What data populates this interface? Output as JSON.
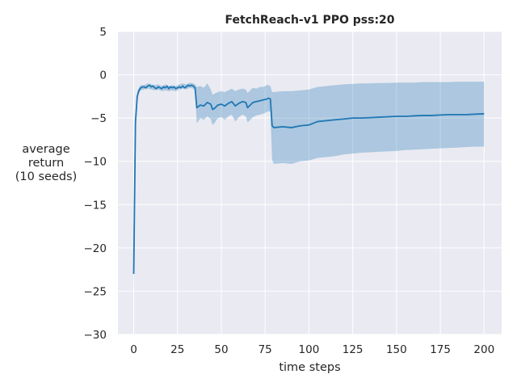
{
  "chart_data": {
    "type": "line",
    "title": "FetchReach-v1 PPO pss:20",
    "xlabel": "time steps",
    "ylabel_lines": [
      "average",
      "return",
      "(10 seeds)"
    ],
    "xlim": [
      -9,
      210
    ],
    "ylim": [
      -30,
      5
    ],
    "x_ticks": [
      0,
      25,
      50,
      75,
      100,
      125,
      150,
      175,
      200
    ],
    "y_ticks": [
      5,
      0,
      -5,
      -10,
      -15,
      -20,
      -25,
      -30
    ],
    "x_tick_labels": [
      "0",
      "25",
      "50",
      "75",
      "100",
      "125",
      "150",
      "175",
      "200"
    ],
    "y_tick_labels": [
      "5",
      "0",
      "−5",
      "−10",
      "−15",
      "−20",
      "−25",
      "−30"
    ],
    "grid": true,
    "colors": {
      "background": "#eaeaf2",
      "grid": "#ffffff",
      "line": "#1f77b4",
      "band": "#1f77b4"
    },
    "series": [
      {
        "mean": [
          [
            0,
            -23
          ],
          [
            1,
            -5.5
          ],
          [
            2,
            -2.5
          ],
          [
            3,
            -1.8
          ],
          [
            4,
            -1.5
          ],
          [
            5,
            -1.4
          ],
          [
            6,
            -1.4
          ],
          [
            7,
            -1.5
          ],
          [
            8,
            -1.3
          ],
          [
            9,
            -1.2
          ],
          [
            10,
            -1.4
          ],
          [
            11,
            -1.3
          ],
          [
            12,
            -1.5
          ],
          [
            13,
            -1.6
          ],
          [
            14,
            -1.4
          ],
          [
            15,
            -1.5
          ],
          [
            16,
            -1.6
          ],
          [
            17,
            -1.4
          ],
          [
            18,
            -1.5
          ],
          [
            19,
            -1.3
          ],
          [
            20,
            -1.6
          ],
          [
            21,
            -1.4
          ],
          [
            22,
            -1.5
          ],
          [
            23,
            -1.4
          ],
          [
            24,
            -1.6
          ],
          [
            25,
            -1.5
          ],
          [
            26,
            -1.4
          ],
          [
            27,
            -1.5
          ],
          [
            28,
            -1.3
          ],
          [
            29,
            -1.5
          ],
          [
            30,
            -1.4
          ],
          [
            31,
            -1.2
          ],
          [
            32,
            -1.3
          ],
          [
            33,
            -1.2
          ],
          [
            34,
            -1.3
          ],
          [
            35,
            -1.5
          ],
          [
            36,
            -3.8
          ],
          [
            38,
            -3.5
          ],
          [
            40,
            -3.6
          ],
          [
            42,
            -3.2
          ],
          [
            44,
            -3.4
          ],
          [
            45,
            -4.0
          ],
          [
            46,
            -3.9
          ],
          [
            48,
            -3.5
          ],
          [
            50,
            -3.4
          ],
          [
            52,
            -3.6
          ],
          [
            54,
            -3.3
          ],
          [
            56,
            -3.1
          ],
          [
            58,
            -3.6
          ],
          [
            60,
            -3.3
          ],
          [
            62,
            -3.1
          ],
          [
            64,
            -3.2
          ],
          [
            65,
            -3.8
          ],
          [
            66,
            -3.6
          ],
          [
            68,
            -3.2
          ],
          [
            70,
            -3.1
          ],
          [
            72,
            -3.0
          ],
          [
            74,
            -2.9
          ],
          [
            76,
            -2.8
          ],
          [
            77,
            -2.7
          ],
          [
            78,
            -2.8
          ],
          [
            79,
            -5.9
          ],
          [
            80,
            -6.1
          ],
          [
            85,
            -6.0
          ],
          [
            90,
            -6.1
          ],
          [
            95,
            -5.9
          ],
          [
            100,
            -5.8
          ],
          [
            105,
            -5.4
          ],
          [
            110,
            -5.3
          ],
          [
            115,
            -5.2
          ],
          [
            120,
            -5.1
          ],
          [
            125,
            -5.0
          ],
          [
            130,
            -5.0
          ],
          [
            135,
            -4.95
          ],
          [
            140,
            -4.9
          ],
          [
            145,
            -4.85
          ],
          [
            150,
            -4.8
          ],
          [
            155,
            -4.8
          ],
          [
            160,
            -4.75
          ],
          [
            165,
            -4.7
          ],
          [
            170,
            -4.7
          ],
          [
            175,
            -4.65
          ],
          [
            180,
            -4.6
          ],
          [
            185,
            -4.6
          ],
          [
            190,
            -4.6
          ],
          [
            195,
            -4.55
          ],
          [
            200,
            -4.5
          ]
        ],
        "band": [
          [
            0,
            -25.2,
            -21.0
          ],
          [
            1,
            -6.5,
            -4.5
          ],
          [
            2,
            -3.0,
            -2.0
          ],
          [
            3,
            -2.1,
            -1.5
          ],
          [
            4,
            -1.8,
            -1.2
          ],
          [
            6,
            -1.7,
            -1.2
          ],
          [
            8,
            -1.6,
            -1.0
          ],
          [
            10,
            -1.7,
            -1.1
          ],
          [
            12,
            -1.8,
            -1.2
          ],
          [
            14,
            -1.7,
            -1.1
          ],
          [
            16,
            -1.9,
            -1.3
          ],
          [
            18,
            -1.8,
            -1.1
          ],
          [
            20,
            -1.9,
            -1.3
          ],
          [
            22,
            -1.8,
            -1.2
          ],
          [
            24,
            -1.9,
            -1.3
          ],
          [
            26,
            -1.7,
            -1.1
          ],
          [
            28,
            -1.6,
            -1.0
          ],
          [
            30,
            -1.7,
            -1.1
          ],
          [
            32,
            -1.5,
            -0.9
          ],
          [
            34,
            -1.6,
            -1.0
          ],
          [
            35,
            -1.8,
            -1.1
          ],
          [
            36,
            -5.6,
            -1.4
          ],
          [
            38,
            -5.0,
            -1.3
          ],
          [
            40,
            -5.2,
            -1.5
          ],
          [
            42,
            -4.8,
            -1.0
          ],
          [
            44,
            -5.1,
            -1.7
          ],
          [
            45,
            -5.8,
            -2.3
          ],
          [
            46,
            -5.6,
            -2.2
          ],
          [
            48,
            -5.0,
            -2.0
          ],
          [
            50,
            -4.9,
            -1.9
          ],
          [
            52,
            -5.2,
            -2.0
          ],
          [
            54,
            -4.8,
            -1.8
          ],
          [
            56,
            -4.6,
            -1.6
          ],
          [
            58,
            -5.4,
            -1.9
          ],
          [
            60,
            -4.9,
            -1.7
          ],
          [
            62,
            -4.6,
            -1.6
          ],
          [
            64,
            -4.8,
            -1.7
          ],
          [
            65,
            -5.5,
            -2.1
          ],
          [
            66,
            -5.3,
            -1.9
          ],
          [
            68,
            -4.9,
            -1.5
          ],
          [
            70,
            -4.7,
            -1.6
          ],
          [
            72,
            -4.6,
            -1.4
          ],
          [
            74,
            -4.5,
            -1.4
          ],
          [
            76,
            -4.3,
            -1.2
          ],
          [
            77,
            -4.2,
            -1.2
          ],
          [
            78,
            -4.3,
            -1.3
          ],
          [
            79,
            -9.8,
            -2.0
          ],
          [
            80,
            -10.3,
            -2.0
          ],
          [
            85,
            -10.2,
            -1.9
          ],
          [
            90,
            -10.3,
            -1.9
          ],
          [
            95,
            -10.0,
            -1.8
          ],
          [
            100,
            -9.9,
            -1.7
          ],
          [
            105,
            -9.6,
            -1.4
          ],
          [
            110,
            -9.5,
            -1.3
          ],
          [
            115,
            -9.4,
            -1.2
          ],
          [
            120,
            -9.2,
            -1.1
          ],
          [
            125,
            -9.1,
            -1.05
          ],
          [
            130,
            -9.0,
            -1.0
          ],
          [
            135,
            -8.95,
            -1.0
          ],
          [
            140,
            -8.9,
            -0.95
          ],
          [
            145,
            -8.85,
            -0.95
          ],
          [
            150,
            -8.8,
            -0.9
          ],
          [
            155,
            -8.7,
            -0.9
          ],
          [
            160,
            -8.65,
            -0.9
          ],
          [
            165,
            -8.6,
            -0.85
          ],
          [
            170,
            -8.55,
            -0.85
          ],
          [
            175,
            -8.5,
            -0.85
          ],
          [
            180,
            -8.45,
            -0.85
          ],
          [
            185,
            -8.4,
            -0.8
          ],
          [
            190,
            -8.35,
            -0.8
          ],
          [
            195,
            -8.3,
            -0.8
          ],
          [
            200,
            -8.3,
            -0.8
          ]
        ]
      }
    ]
  }
}
